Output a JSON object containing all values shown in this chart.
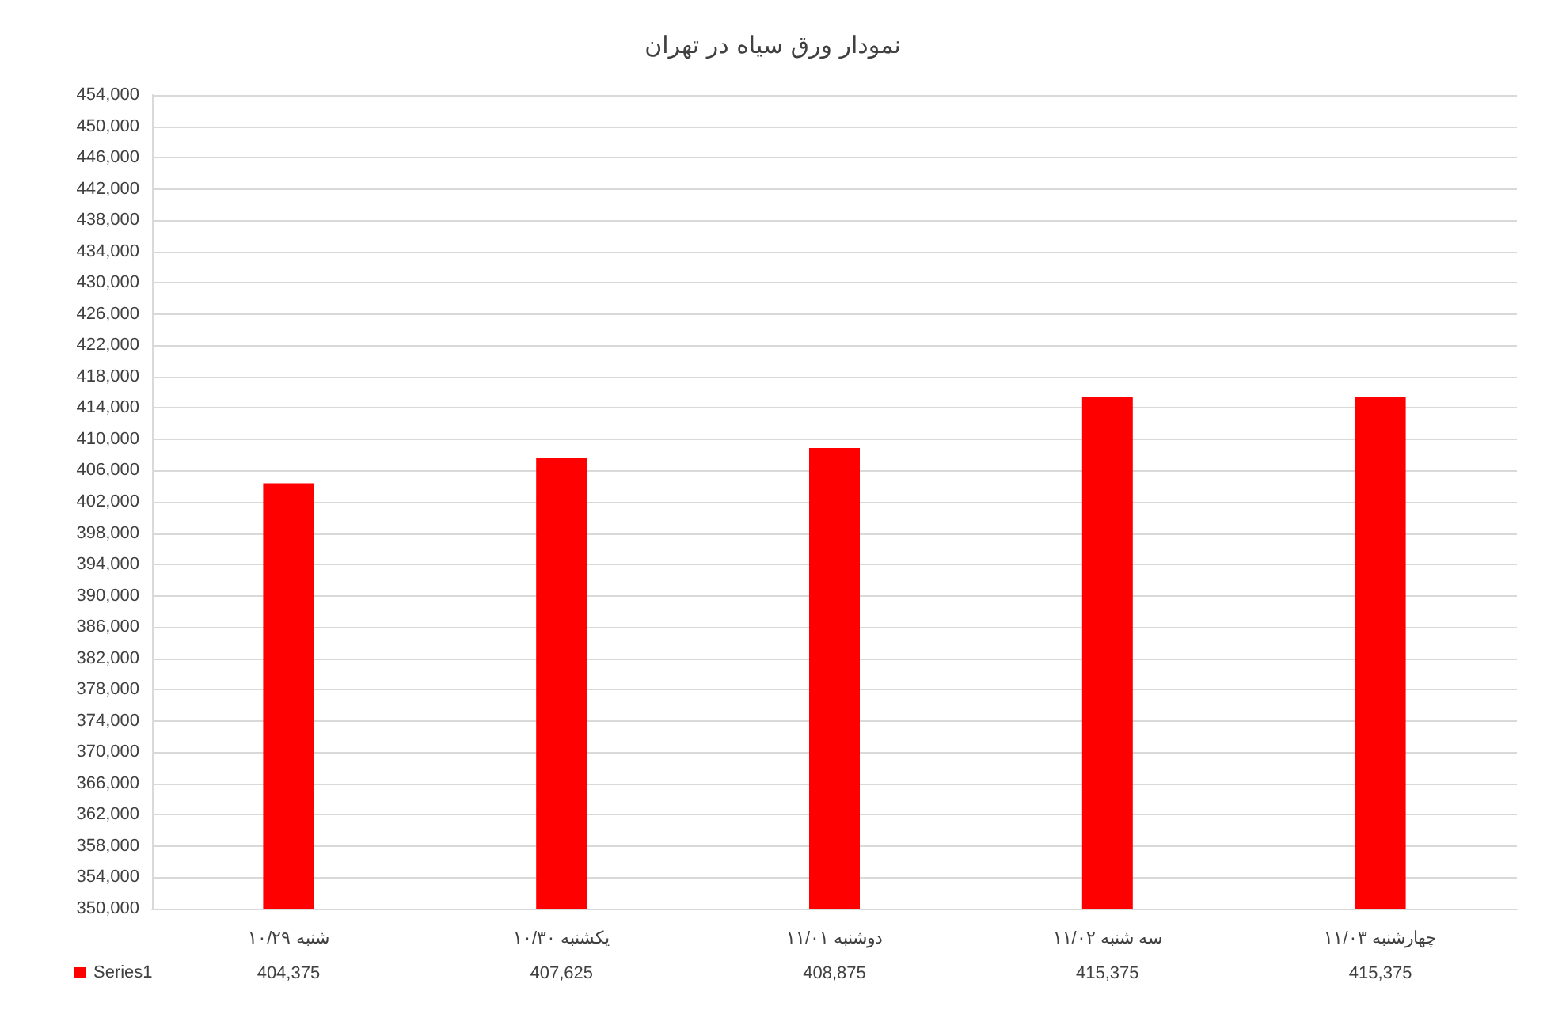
{
  "chart_data": {
    "type": "bar",
    "title": "نمودار ورق سیاه در تهران",
    "categories": [
      "شنبه ۱۰/۲۹",
      "یکشنبه ۱۰/۳۰",
      "دوشنبه ۱۱/۰۱",
      "سه شنبه ۱۱/۰۲",
      "چهارشنبه ۱۱/۰۳"
    ],
    "series": [
      {
        "name": "Series1",
        "color": "#ff0000",
        "values": [
          404375,
          407625,
          408875,
          415375,
          415375
        ],
        "value_labels": [
          "404,375",
          "407,625",
          "408,875",
          "415,375",
          "415,375"
        ]
      }
    ],
    "ylim": [
      350000,
      454000
    ],
    "yticks": [
      {
        "value": 350000,
        "label": "350,000"
      },
      {
        "value": 354000,
        "label": "354,000"
      },
      {
        "value": 358000,
        "label": "358,000"
      },
      {
        "value": 362000,
        "label": "362,000"
      },
      {
        "value": 366000,
        "label": "366,000"
      },
      {
        "value": 370000,
        "label": "370,000"
      },
      {
        "value": 374000,
        "label": "374,000"
      },
      {
        "value": 378000,
        "label": "378,000"
      },
      {
        "value": 382000,
        "label": "382,000"
      },
      {
        "value": 386000,
        "label": "386,000"
      },
      {
        "value": 390000,
        "label": "390,000"
      },
      {
        "value": 394000,
        "label": "394,000"
      },
      {
        "value": 398000,
        "label": "398,000"
      },
      {
        "value": 402000,
        "label": "402,000"
      },
      {
        "value": 406000,
        "label": "406,000"
      },
      {
        "value": 410000,
        "label": "410,000"
      },
      {
        "value": 414000,
        "label": "414,000"
      },
      {
        "value": 418000,
        "label": "418,000"
      },
      {
        "value": 422000,
        "label": "422,000"
      },
      {
        "value": 426000,
        "label": "426,000"
      },
      {
        "value": 430000,
        "label": "430,000"
      },
      {
        "value": 434000,
        "label": "434,000"
      },
      {
        "value": 438000,
        "label": "438,000"
      },
      {
        "value": 442000,
        "label": "442,000"
      },
      {
        "value": 446000,
        "label": "446,000"
      },
      {
        "value": 450000,
        "label": "450,000"
      },
      {
        "value": 454000,
        "label": "454,000"
      }
    ],
    "grid": "y",
    "legend": "bottom left"
  }
}
